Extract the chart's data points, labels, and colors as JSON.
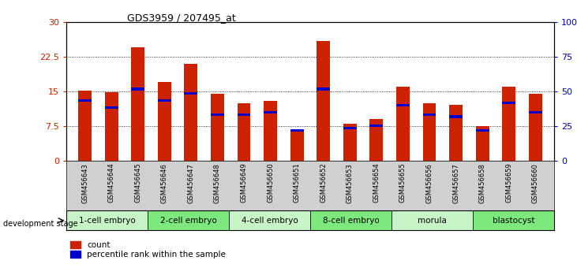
{
  "title": "GDS3959 / 207495_at",
  "samples": [
    "GSM456643",
    "GSM456644",
    "GSM456645",
    "GSM456646",
    "GSM456647",
    "GSM456648",
    "GSM456649",
    "GSM456650",
    "GSM456651",
    "GSM456652",
    "GSM456653",
    "GSM456654",
    "GSM456655",
    "GSM456656",
    "GSM456657",
    "GSM456658",
    "GSM456659",
    "GSM456660"
  ],
  "count_values": [
    15.2,
    14.8,
    24.5,
    17.0,
    21.0,
    14.5,
    12.5,
    13.0,
    6.5,
    26.0,
    8.0,
    9.0,
    16.0,
    12.5,
    12.0,
    7.5,
    16.0,
    14.5
  ],
  "percentile_values": [
    13.0,
    11.5,
    15.5,
    13.0,
    14.5,
    10.0,
    10.0,
    10.5,
    6.5,
    15.5,
    7.0,
    7.5,
    12.0,
    10.0,
    9.5,
    6.5,
    12.5,
    10.5
  ],
  "stages": [
    {
      "label": "1-cell embryo",
      "start": 0,
      "end": 2
    },
    {
      "label": "2-cell embryo",
      "start": 3,
      "end": 5
    },
    {
      "label": "4-cell embryo",
      "start": 6,
      "end": 8
    },
    {
      "label": "8-cell embryo",
      "start": 9,
      "end": 11
    },
    {
      "label": "morula",
      "start": 12,
      "end": 14
    },
    {
      "label": "blastocyst",
      "start": 15,
      "end": 17
    }
  ],
  "stage_colors": [
    "#c8f5c8",
    "#7de87d",
    "#c8f5c8",
    "#7de87d",
    "#c8f5c8",
    "#7de87d"
  ],
  "bar_color": "#cc2200",
  "percentile_color": "#0000cc",
  "xtick_bg": "#d0d0d0",
  "ylim_left": [
    0,
    30
  ],
  "yticks_left": [
    0,
    7.5,
    15,
    22.5,
    30
  ],
  "ytick_labels_left": [
    "0",
    "7.5",
    "15",
    "22.5",
    "30"
  ],
  "ytick_labels_right": [
    "0",
    "25",
    "50",
    "75",
    "100%"
  ],
  "bar_width": 0.5,
  "background_color": "#ffffff"
}
